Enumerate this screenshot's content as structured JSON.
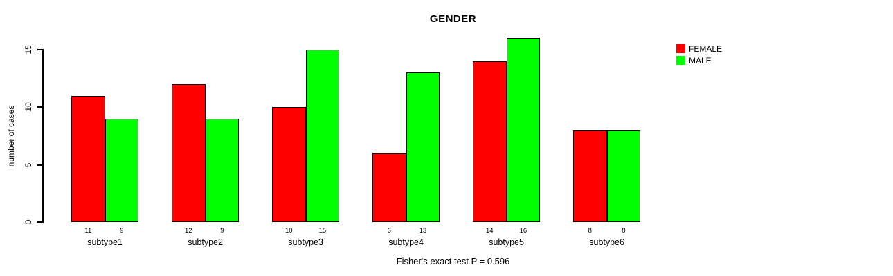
{
  "chart_data": {
    "type": "bar",
    "title": "GENDER",
    "ylabel": "number of cases",
    "xlabel": "",
    "categories": [
      "subtype1",
      "subtype2",
      "subtype3",
      "subtype4",
      "subtype5",
      "subtype6"
    ],
    "series": [
      {
        "name": "FEMALE",
        "color": "#ff0000",
        "values": [
          11,
          12,
          10,
          6,
          14,
          8
        ]
      },
      {
        "name": "MALE",
        "color": "#00ff00",
        "values": [
          9,
          9,
          15,
          13,
          16,
          8
        ]
      }
    ],
    "yticks": [
      0,
      5,
      10,
      15
    ],
    "ylim": [
      0,
      15
    ],
    "bar_value_labels": [
      [
        "11",
        "9"
      ],
      [
        "12",
        "9"
      ],
      [
        "10",
        "15"
      ],
      [
        "6",
        "13"
      ],
      [
        "14",
        "16"
      ],
      [
        "8",
        "8"
      ]
    ],
    "grid": false,
    "legend_position": "topright",
    "footnote": "Fisher's exact test P = 0.596",
    "axis_color": "#000000",
    "bar_border_color": "#000000"
  }
}
